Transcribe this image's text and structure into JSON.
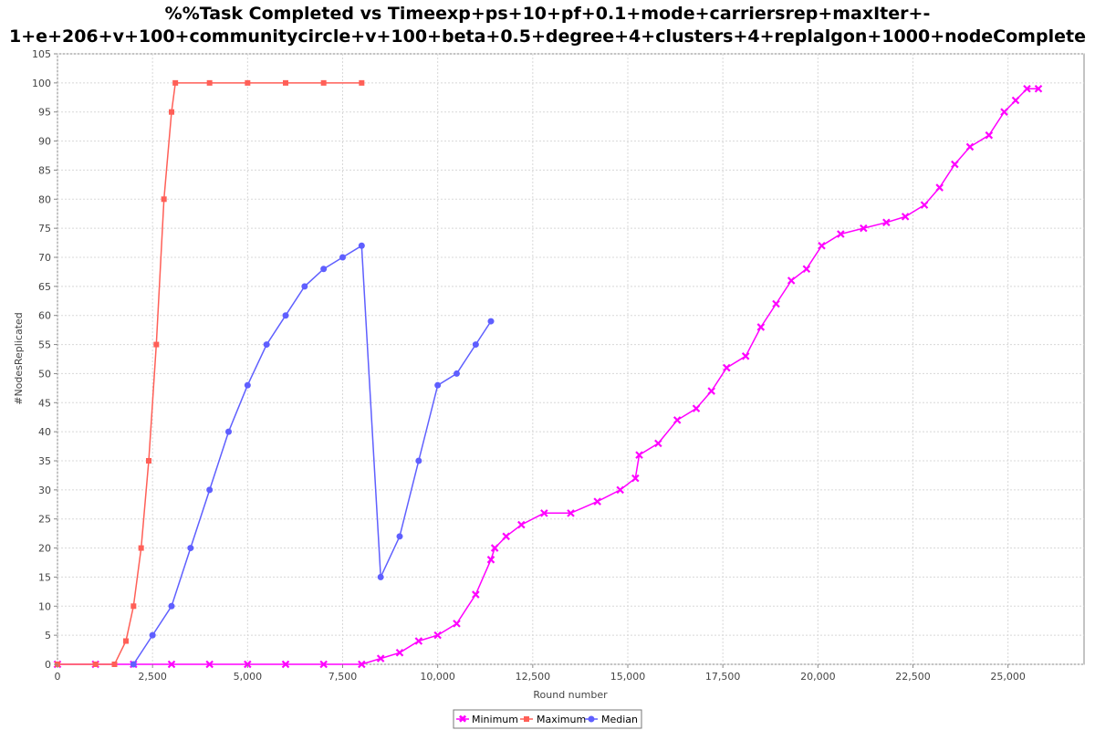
{
  "chart_data": {
    "type": "line",
    "title_lines": [
      "%%Task Completed vs Timeexp+ps+10+pf+0.1+mode+carriersrep+maxIter+-",
      "1+e+206+v+100+communitycircle+v+100+beta+0.5+degree+4+clusters+4+replalgon+1000+nodeComplete"
    ],
    "xlabel": "Round number",
    "ylabel": "#NodesReplicated",
    "xlim": [
      0,
      27000
    ],
    "ylim": [
      0,
      105
    ],
    "x_ticks": [
      "0",
      "2,500",
      "5,000",
      "7,500",
      "10,000",
      "12,500",
      "15,000",
      "17,500",
      "20,000",
      "22,500",
      "25,000"
    ],
    "y_ticks": [
      "0",
      "5",
      "10",
      "15",
      "20",
      "25",
      "30",
      "35",
      "40",
      "45",
      "50",
      "55",
      "60",
      "65",
      "70",
      "75",
      "80",
      "85",
      "90",
      "95",
      "100",
      "105"
    ],
    "grid": true,
    "legend_position": "bottom",
    "series": [
      {
        "name": "Minimum",
        "color": "#ff00ff",
        "marker": "x",
        "points": [
          [
            0,
            0
          ],
          [
            1000,
            0
          ],
          [
            2000,
            0
          ],
          [
            3000,
            0
          ],
          [
            4000,
            0
          ],
          [
            5000,
            0
          ],
          [
            6000,
            0
          ],
          [
            7000,
            0
          ],
          [
            8000,
            0
          ],
          [
            8500,
            1
          ],
          [
            9000,
            2
          ],
          [
            9500,
            4
          ],
          [
            10000,
            5
          ],
          [
            10500,
            7
          ],
          [
            11000,
            12
          ],
          [
            11400,
            18
          ],
          [
            11500,
            20
          ],
          [
            11800,
            22
          ],
          [
            12200,
            24
          ],
          [
            12800,
            26
          ],
          [
            13500,
            26
          ],
          [
            14200,
            28
          ],
          [
            14800,
            30
          ],
          [
            15200,
            32
          ],
          [
            15300,
            36
          ],
          [
            15800,
            38
          ],
          [
            16300,
            42
          ],
          [
            16800,
            44
          ],
          [
            17200,
            47
          ],
          [
            17600,
            51
          ],
          [
            18100,
            53
          ],
          [
            18500,
            58
          ],
          [
            18900,
            62
          ],
          [
            19300,
            66
          ],
          [
            19700,
            68
          ],
          [
            20100,
            72
          ],
          [
            20600,
            74
          ],
          [
            21200,
            75
          ],
          [
            21800,
            76
          ],
          [
            22300,
            77
          ],
          [
            22800,
            79
          ],
          [
            23200,
            82
          ],
          [
            23600,
            86
          ],
          [
            24000,
            89
          ],
          [
            24500,
            91
          ],
          [
            24900,
            95
          ],
          [
            25200,
            97
          ],
          [
            25500,
            99
          ],
          [
            25800,
            99
          ]
        ]
      },
      {
        "name": "Maximum",
        "color": "#ff5f57",
        "marker": "square",
        "points": [
          [
            0,
            0
          ],
          [
            1000,
            0
          ],
          [
            1500,
            0
          ],
          [
            1800,
            4
          ],
          [
            2000,
            10
          ],
          [
            2200,
            20
          ],
          [
            2400,
            35
          ],
          [
            2600,
            55
          ],
          [
            2800,
            80
          ],
          [
            3000,
            95
          ],
          [
            3100,
            100
          ],
          [
            4000,
            100
          ],
          [
            5000,
            100
          ],
          [
            6000,
            100
          ],
          [
            7000,
            100
          ],
          [
            8000,
            100
          ]
        ]
      },
      {
        "name": "Median",
        "color": "#5f5fff",
        "marker": "circle",
        "points": [
          [
            2000,
            0
          ],
          [
            2500,
            5
          ],
          [
            3000,
            10
          ],
          [
            3500,
            20
          ],
          [
            4000,
            30
          ],
          [
            4500,
            40
          ],
          [
            5000,
            48
          ],
          [
            5500,
            55
          ],
          [
            6000,
            60
          ],
          [
            6500,
            65
          ],
          [
            7000,
            68
          ],
          [
            7500,
            70
          ],
          [
            8000,
            72
          ],
          [
            8500,
            15
          ],
          [
            9000,
            22
          ],
          [
            9500,
            35
          ],
          [
            10000,
            48
          ],
          [
            10500,
            50
          ],
          [
            11000,
            55
          ],
          [
            11400,
            59
          ]
        ]
      }
    ]
  }
}
